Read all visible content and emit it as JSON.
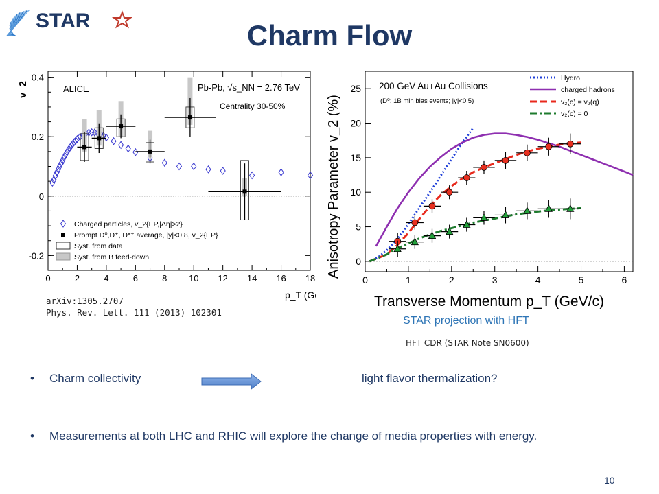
{
  "slide": {
    "title": "Charm Flow",
    "logo_text": "STAR",
    "page_number": "10"
  },
  "references": {
    "left_line1": "arXiv:1305.2707",
    "left_line2": "Phys. Rev. Lett. 111 (2013) 102301",
    "star_projection": "STAR projection with HFT",
    "hft_cdr": "HFT CDR (STAR Note SN0600)"
  },
  "bullets": {
    "b1_left": "Charm collectivity",
    "b1_right": "light flavor thermalization?",
    "b2": "Measurements at both LHC and RHIC will explore the change of media properties with energy.",
    "bullet_char": "•"
  },
  "colors": {
    "title": "#1f3864",
    "hydro": "#1f3fd8",
    "charged_hadrons": "#8e2fb0",
    "charm_flow": "#e8291c",
    "no_charm_flow": "#1e7b2e",
    "charm_marker": "#e83020",
    "nocharm_marker": "#22a03a",
    "arrow": "#5b8fd6"
  },
  "chart_data": [
    {
      "type": "scatter",
      "xlabel": "p_T (GeV/c)",
      "ylabel": "v_2",
      "xlim": [
        0,
        18
      ],
      "ylim": [
        -0.25,
        0.42
      ],
      "xticks": [
        "0",
        "2",
        "4",
        "6",
        "8",
        "10",
        "12",
        "14",
        "16",
        "18"
      ],
      "yticks": [
        "-0.2",
        "0",
        "0.2",
        "0.4"
      ],
      "legend_position": "bottom-left",
      "annotations": {
        "experiment": "ALICE",
        "system": "Pb-Pb, √s_NN = 2.76 TeV",
        "centrality": "Centrality 30-50%"
      },
      "legend": [
        "Charged particles, v_2{EP,|Δη|>2}",
        "Prompt D⁰,D⁺, D*⁺ average, |y|<0.8, v_2{EP}",
        "Syst. from data",
        "Syst. from B feed-down"
      ],
      "series": [
        {
          "name": "Charged particles, v_2{EP,|Δη|>2}",
          "x": [
            0.3,
            0.4,
            0.5,
            0.6,
            0.7,
            0.8,
            0.9,
            1.0,
            1.1,
            1.2,
            1.3,
            1.4,
            1.5,
            1.6,
            1.7,
            1.8,
            1.9,
            2.0,
            2.2,
            2.4,
            2.6,
            2.8,
            3.0,
            3.2,
            3.4,
            3.6,
            3.8,
            4.0,
            4.5,
            5.0,
            5.5,
            6.0,
            7.0,
            8.0,
            9.0,
            10.0,
            11.0,
            12.0,
            14.0,
            16.0,
            18.0
          ],
          "y": [
            0.045,
            0.055,
            0.068,
            0.08,
            0.09,
            0.1,
            0.11,
            0.12,
            0.13,
            0.14,
            0.148,
            0.156,
            0.163,
            0.17,
            0.176,
            0.182,
            0.187,
            0.192,
            0.2,
            0.206,
            0.211,
            0.214,
            0.215,
            0.214,
            0.212,
            0.208,
            0.203,
            0.197,
            0.185,
            0.172,
            0.16,
            0.148,
            0.128,
            0.112,
            0.1,
            0.1,
            0.09,
            0.085,
            0.07,
            0.08,
            0.07
          ]
        },
        {
          "name": "Prompt D⁰,D⁺, D*⁺ average, |y|<0.8, v_2{EP}",
          "x": [
            2.5,
            3.5,
            5.0,
            7.0,
            9.75,
            13.5
          ],
          "y": [
            0.165,
            0.195,
            0.235,
            0.15,
            0.265,
            0.015
          ],
          "y_err": [
            0.05,
            0.05,
            0.04,
            0.04,
            0.065,
            0.095
          ],
          "x_err": [
            0.5,
            0.5,
            1.0,
            1.0,
            1.75,
            2.5
          ],
          "syst_data": [
            [
              0.12,
              0.21
            ],
            [
              0.16,
              0.23
            ],
            [
              0.2,
              0.26
            ],
            [
              0.115,
              0.18
            ],
            [
              0.23,
              0.3
            ],
            [
              -0.08,
              0.12
            ]
          ],
          "syst_b": [
            [
              0.15,
              0.26
            ],
            [
              0.17,
              0.29
            ],
            [
              0.2,
              0.32
            ],
            [
              0.13,
              0.22
            ],
            [
              0.24,
              0.4
            ],
            [
              0.0,
              0.06
            ]
          ]
        }
      ]
    },
    {
      "type": "line",
      "xlabel": "Transverse Momentum p_T (GeV/c)",
      "ylabel": "Anisotropy Parameter v_2 (%)",
      "xlim": [
        0,
        6.2
      ],
      "ylim": [
        -1.5,
        27.5
      ],
      "xticks": [
        "0",
        "1",
        "2",
        "3",
        "4",
        "5",
        "6"
      ],
      "yticks": [
        "0",
        "5",
        "10",
        "15",
        "20",
        "25"
      ],
      "legend_position": "top-right",
      "annotations": {
        "system": "200 GeV Au+Au Collisions",
        "subtitle": "(D⁰: 1B min bias events; |y|<0.5)"
      },
      "series": [
        {
          "name": "Hydro",
          "x": [
            0.1,
            0.3,
            0.5,
            0.75,
            1.0,
            1.25,
            1.5,
            1.75,
            2.0,
            2.25,
            2.5
          ],
          "y": [
            0.0,
            0.6,
            1.6,
            3.3,
            5.4,
            7.7,
            10.0,
            12.4,
            14.8,
            17.2,
            19.3
          ]
        },
        {
          "name": "charged hadrons",
          "x": [
            0.25,
            0.5,
            0.75,
            1.0,
            1.25,
            1.5,
            1.75,
            2.0,
            2.25,
            2.5,
            2.75,
            3.0,
            3.25,
            3.5,
            3.75,
            4.0,
            4.25,
            4.5,
            4.75,
            5.0,
            5.25,
            5.5,
            5.75,
            6.0,
            6.2
          ],
          "y": [
            2.2,
            5.0,
            7.7,
            10.0,
            12.0,
            13.7,
            15.1,
            16.3,
            17.2,
            17.9,
            18.3,
            18.5,
            18.5,
            18.3,
            18.0,
            17.6,
            17.1,
            16.6,
            16.0,
            15.4,
            14.8,
            14.2,
            13.6,
            13.0,
            12.5
          ]
        },
        {
          "name": "v₂(c) = v₂(q)",
          "x": [
            0.1,
            0.5,
            0.75,
            1.0,
            1.25,
            1.5,
            1.75,
            2.0,
            2.25,
            2.5,
            2.75,
            3.0,
            3.25,
            3.5,
            3.75,
            4.0,
            4.25,
            4.5,
            4.75,
            5.0
          ],
          "y": [
            0.0,
            1.0,
            2.4,
            4.1,
            6.1,
            8.0,
            9.6,
            10.9,
            12.0,
            12.9,
            13.6,
            14.2,
            14.8,
            15.4,
            15.9,
            16.3,
            16.6,
            16.9,
            17.1,
            17.2
          ]
        },
        {
          "name": "v₂(c) = 0",
          "x": [
            0.1,
            0.5,
            0.75,
            1.0,
            1.25,
            1.5,
            1.75,
            2.0,
            2.25,
            2.5,
            2.75,
            3.0,
            3.25,
            3.5,
            3.75,
            4.0,
            4.25,
            4.5,
            4.75,
            5.0
          ],
          "y": [
            0.0,
            1.0,
            1.9,
            2.6,
            3.3,
            3.9,
            4.4,
            4.8,
            5.2,
            5.6,
            5.9,
            6.2,
            6.5,
            6.8,
            7.0,
            7.2,
            7.4,
            7.5,
            7.6,
            7.7
          ]
        },
        {
          "name": "charm_points",
          "x": [
            0.75,
            1.15,
            1.55,
            1.95,
            2.35,
            2.75,
            3.25,
            3.75,
            4.25,
            4.75
          ],
          "y": [
            2.9,
            5.6,
            8.0,
            10.0,
            12.1,
            13.6,
            14.6,
            15.7,
            16.6,
            17.0
          ],
          "y_err": [
            1.2,
            1.0,
            1.0,
            1.0,
            1.0,
            1.0,
            1.2,
            1.2,
            1.3,
            1.5
          ],
          "x_err": [
            0.2,
            0.2,
            0.2,
            0.2,
            0.2,
            0.25,
            0.25,
            0.25,
            0.25,
            0.25
          ]
        },
        {
          "name": "nocharm_points",
          "x": [
            0.75,
            1.15,
            1.55,
            1.95,
            2.35,
            2.75,
            3.25,
            3.75,
            4.25,
            4.75
          ],
          "y": [
            1.8,
            2.8,
            3.7,
            4.3,
            5.3,
            6.3,
            6.7,
            7.3,
            7.6,
            7.6
          ],
          "y_err": [
            1.2,
            1.0,
            1.0,
            1.0,
            1.0,
            1.0,
            1.2,
            1.2,
            1.3,
            1.5
          ],
          "x_err": [
            0.2,
            0.2,
            0.2,
            0.2,
            0.2,
            0.25,
            0.25,
            0.25,
            0.25,
            0.25
          ]
        }
      ]
    }
  ]
}
